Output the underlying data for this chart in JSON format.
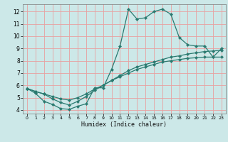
{
  "xlabel": "Humidex (Indice chaleur)",
  "bg_color": "#cce8e8",
  "line_color": "#2a7a70",
  "grid_color": "#e8a0a0",
  "xlim": [
    -0.5,
    23.5
  ],
  "ylim": [
    3.7,
    12.6
  ],
  "xticks": [
    0,
    1,
    2,
    3,
    4,
    5,
    6,
    7,
    8,
    9,
    10,
    11,
    12,
    13,
    14,
    15,
    16,
    17,
    18,
    19,
    20,
    21,
    22,
    23
  ],
  "yticks": [
    4,
    5,
    6,
    7,
    8,
    9,
    10,
    11,
    12
  ],
  "line1_x": [
    0,
    1,
    2,
    3,
    4,
    5,
    6,
    7,
    8,
    9,
    10,
    11,
    12,
    13,
    14,
    15,
    16,
    17,
    18,
    19,
    20,
    21,
    22,
    23
  ],
  "line1_y": [
    5.75,
    5.35,
    4.7,
    4.45,
    4.1,
    4.05,
    4.3,
    4.5,
    5.8,
    5.8,
    7.3,
    9.2,
    12.2,
    11.4,
    11.5,
    12.0,
    12.2,
    11.8,
    9.9,
    9.3,
    9.2,
    9.2,
    8.3,
    9.0
  ],
  "line2_x": [
    0,
    1,
    2,
    3,
    4,
    5,
    6,
    7,
    8,
    9,
    10,
    11,
    12,
    13,
    14,
    15,
    16,
    17,
    18,
    19,
    20,
    21,
    22,
    23
  ],
  "line2_y": [
    5.75,
    5.5,
    5.3,
    5.1,
    4.9,
    4.8,
    5.0,
    5.3,
    5.7,
    6.0,
    6.4,
    6.7,
    7.0,
    7.3,
    7.5,
    7.7,
    7.9,
    8.0,
    8.1,
    8.2,
    8.25,
    8.3,
    8.3,
    8.3
  ],
  "line3_x": [
    0,
    1,
    2,
    3,
    4,
    5,
    6,
    7,
    8,
    9,
    10,
    11,
    12,
    13,
    14,
    15,
    16,
    17,
    18,
    19,
    20,
    21,
    22,
    23
  ],
  "line3_y": [
    5.75,
    5.5,
    5.3,
    4.9,
    4.6,
    4.4,
    4.7,
    5.1,
    5.6,
    6.0,
    6.4,
    6.8,
    7.2,
    7.5,
    7.7,
    7.9,
    8.1,
    8.3,
    8.4,
    8.55,
    8.65,
    8.75,
    8.8,
    8.85
  ]
}
